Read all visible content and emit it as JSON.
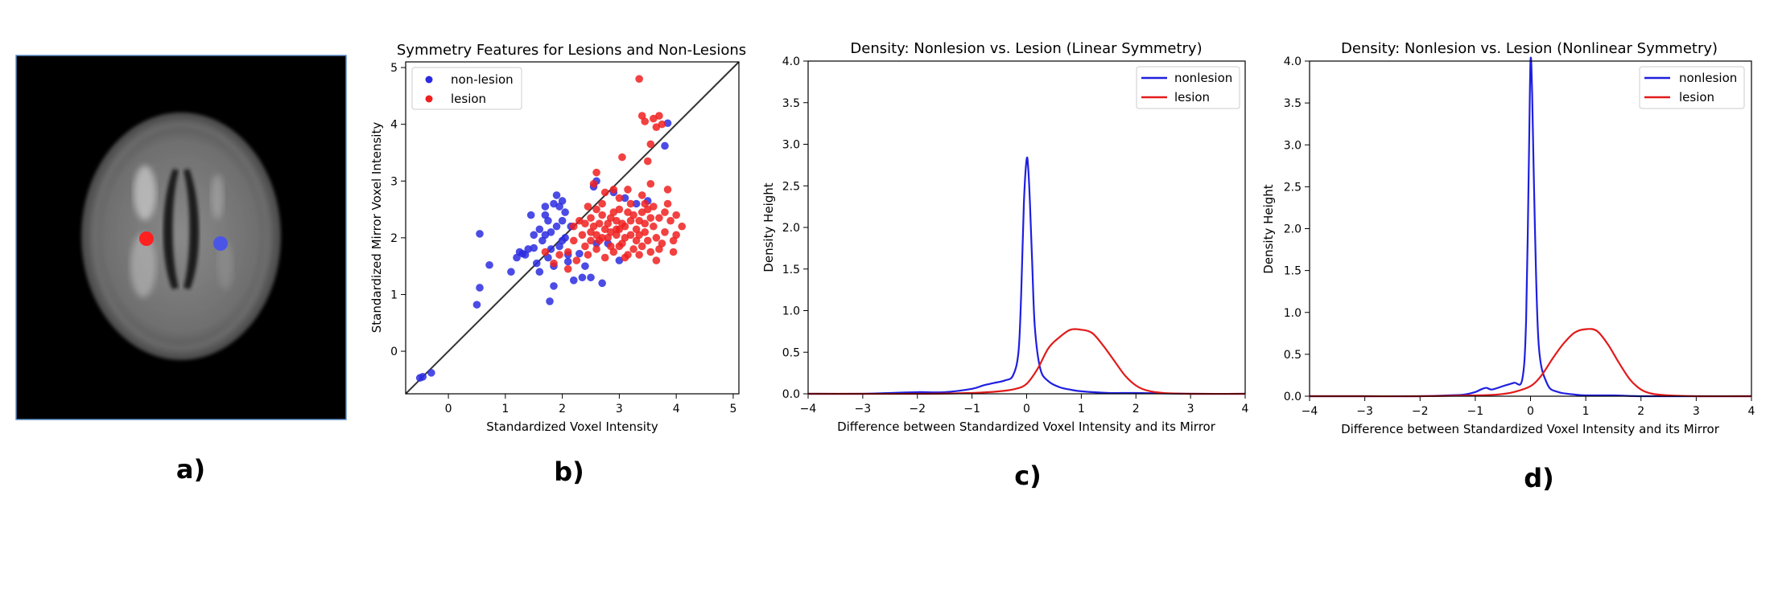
{
  "panels": {
    "a": {
      "label": "a)"
    },
    "b": {
      "label": "b)"
    },
    "c": {
      "label": "c)"
    },
    "d": {
      "label": "d)"
    }
  },
  "colors": {
    "nonlesion": "#1f1fe0",
    "lesion": "#e11b1b",
    "diag": "#333333",
    "scatter_blue": "#2b2be0",
    "scatter_red": "#f02020"
  },
  "image_a": {
    "name": "brain-mri-axial",
    "markers": [
      "lesion-dot",
      "nonlesion-dot"
    ]
  },
  "chart_data": [
    {
      "type": "scatter",
      "title": "Symmetry Features for Lesions and Non-Lesions",
      "xlabel": "Standardized Voxel Intensity",
      "ylabel": "Standardized Mirror Voxel Intensity",
      "xlim": [
        -0.75,
        5.1
      ],
      "ylim": [
        -0.75,
        5.1
      ],
      "xticks": [
        0,
        1,
        2,
        3,
        4,
        5
      ],
      "yticks": [
        0,
        1,
        2,
        3,
        4,
        5
      ],
      "diagonal": true,
      "legend": {
        "position": "top-left",
        "entries": [
          "non-lesion",
          "lesion"
        ]
      },
      "series": [
        {
          "name": "non-lesion",
          "points": [
            [
              -0.5,
              -0.47
            ],
            [
              -0.3,
              -0.38
            ],
            [
              -0.45,
              -0.45
            ],
            [
              0.5,
              0.82
            ],
            [
              0.55,
              1.12
            ],
            [
              0.55,
              2.07
            ],
            [
              0.72,
              1.52
            ],
            [
              1.1,
              1.4
            ],
            [
              1.2,
              1.65
            ],
            [
              1.25,
              1.75
            ],
            [
              1.3,
              1.72
            ],
            [
              1.4,
              1.8
            ],
            [
              1.45,
              2.4
            ],
            [
              1.5,
              1.82
            ],
            [
              1.55,
              1.55
            ],
            [
              1.6,
              1.4
            ],
            [
              1.6,
              2.15
            ],
            [
              1.7,
              2.05
            ],
            [
              1.7,
              2.4
            ],
            [
              1.75,
              1.65
            ],
            [
              1.75,
              2.3
            ],
            [
              1.78,
              0.88
            ],
            [
              1.8,
              1.8
            ],
            [
              1.8,
              2.1
            ],
            [
              1.85,
              1.15
            ],
            [
              1.85,
              1.5
            ],
            [
              1.85,
              2.6
            ],
            [
              1.9,
              2.2
            ],
            [
              1.9,
              2.75
            ],
            [
              1.95,
              1.85
            ],
            [
              1.95,
              2.55
            ],
            [
              2.0,
              2.3
            ],
            [
              2.0,
              1.95
            ],
            [
              2.05,
              2.0
            ],
            [
              2.05,
              2.45
            ],
            [
              2.1,
              1.58
            ],
            [
              2.1,
              1.7
            ],
            [
              2.15,
              2.2
            ],
            [
              2.2,
              1.25
            ],
            [
              2.3,
              1.72
            ],
            [
              2.35,
              1.3
            ],
            [
              2.4,
              1.5
            ],
            [
              2.5,
              1.3
            ],
            [
              2.55,
              2.9
            ],
            [
              2.6,
              3.0
            ],
            [
              2.6,
              1.9
            ],
            [
              2.7,
              1.2
            ],
            [
              2.8,
              1.9
            ],
            [
              2.9,
              2.8
            ],
            [
              3.0,
              1.6
            ],
            [
              3.1,
              2.7
            ],
            [
              3.3,
              2.6
            ],
            [
              3.5,
              2.65
            ],
            [
              3.8,
              3.62
            ],
            [
              3.85,
              4.02
            ],
            [
              1.65,
              1.95
            ],
            [
              1.5,
              2.05
            ],
            [
              1.35,
              1.7
            ],
            [
              2.0,
              2.65
            ],
            [
              1.7,
              2.55
            ]
          ]
        },
        {
          "name": "lesion",
          "points": [
            [
              3.35,
              4.8
            ],
            [
              3.4,
              4.15
            ],
            [
              3.45,
              4.05
            ],
            [
              3.5,
              3.35
            ],
            [
              3.55,
              3.65
            ],
            [
              3.6,
              4.1
            ],
            [
              3.65,
              3.95
            ],
            [
              3.7,
              4.15
            ],
            [
              3.75,
              4.0
            ],
            [
              3.05,
              3.42
            ],
            [
              2.6,
              3.15
            ],
            [
              2.55,
              2.95
            ],
            [
              2.75,
              2.8
            ],
            [
              2.9,
              2.85
            ],
            [
              3.55,
              2.95
            ],
            [
              3.85,
              2.85
            ],
            [
              4.1,
              2.2
            ],
            [
              4.0,
              2.05
            ],
            [
              1.85,
              1.55
            ],
            [
              1.7,
              1.75
            ],
            [
              2.1,
              1.75
            ],
            [
              2.3,
              2.3
            ],
            [
              2.45,
              2.55
            ],
            [
              2.2,
              1.95
            ],
            [
              2.4,
              1.85
            ],
            [
              2.5,
              2.1
            ],
            [
              2.6,
              1.8
            ],
            [
              2.65,
              2.25
            ],
            [
              2.7,
              2.4
            ],
            [
              2.75,
              1.65
            ],
            [
              2.8,
              2.0
            ],
            [
              2.85,
              2.35
            ],
            [
              2.9,
              1.75
            ],
            [
              2.95,
              2.15
            ],
            [
              3.0,
              2.5
            ],
            [
              3.05,
              1.9
            ],
            [
              3.1,
              2.2
            ],
            [
              3.15,
              1.7
            ],
            [
              3.2,
              2.05
            ],
            [
              3.25,
              2.4
            ],
            [
              3.3,
              1.95
            ],
            [
              3.35,
              2.3
            ],
            [
              3.4,
              1.85
            ],
            [
              3.45,
              2.1
            ],
            [
              3.5,
              2.5
            ],
            [
              3.55,
              1.75
            ],
            [
              3.6,
              2.2
            ],
            [
              3.65,
              2.0
            ],
            [
              3.7,
              2.35
            ],
            [
              3.75,
              1.9
            ],
            [
              3.8,
              2.1
            ],
            [
              3.9,
              2.3
            ],
            [
              3.95,
              1.95
            ],
            [
              2.55,
              2.2
            ],
            [
              2.65,
              1.95
            ],
            [
              2.75,
              2.15
            ],
            [
              2.85,
              1.85
            ],
            [
              2.95,
              2.05
            ],
            [
              3.05,
              2.25
            ],
            [
              3.15,
              2.45
            ],
            [
              3.25,
              1.8
            ],
            [
              3.35,
              2.05
            ],
            [
              3.45,
              2.6
            ],
            [
              3.55,
              2.35
            ],
            [
              3.65,
              1.6
            ],
            [
              2.35,
              2.05
            ],
            [
              2.45,
              1.7
            ],
            [
              2.5,
              2.35
            ],
            [
              2.6,
              2.05
            ],
            [
              2.7,
              2.6
            ],
            [
              2.8,
              2.25
            ],
            [
              2.9,
              2.45
            ],
            [
              3.0,
              1.85
            ],
            [
              3.1,
              2.0
            ],
            [
              3.2,
              2.3
            ],
            [
              3.3,
              2.15
            ],
            [
              3.4,
              2.45
            ],
            [
              3.5,
              1.95
            ],
            [
              3.6,
              2.55
            ],
            [
              3.7,
              1.8
            ],
            [
              3.8,
              2.45
            ],
            [
              3.0,
              2.15
            ],
            [
              3.1,
              1.65
            ],
            [
              3.2,
              2.6
            ],
            [
              2.95,
              2.3
            ],
            [
              2.85,
              2.1
            ],
            [
              3.35,
              1.7
            ],
            [
              3.45,
              2.25
            ],
            [
              2.7,
              2.0
            ],
            [
              2.2,
              2.2
            ],
            [
              2.25,
              1.6
            ],
            [
              3.85,
              2.6
            ],
            [
              4.0,
              2.4
            ],
            [
              3.95,
              1.75
            ],
            [
              2.4,
              2.25
            ],
            [
              2.5,
              1.95
            ],
            [
              2.6,
              2.5
            ],
            [
              3.0,
              2.7
            ],
            [
              3.15,
              2.85
            ],
            [
              3.4,
              2.75
            ],
            [
              2.1,
              1.45
            ],
            [
              1.95,
              1.7
            ]
          ]
        }
      ]
    },
    {
      "type": "line",
      "title": "Density: Nonlesion vs. Lesion (Linear Symmetry)",
      "xlabel": "Difference between Standardized Voxel Intensity and its Mirror",
      "ylabel": "Density Height",
      "xlim": [
        -4,
        4
      ],
      "ylim": [
        0,
        4.0
      ],
      "xticks": [
        -4,
        -3,
        -2,
        -1,
        0,
        1,
        2,
        3,
        4
      ],
      "yticks": [
        0.0,
        0.5,
        1.0,
        1.5,
        2.0,
        2.5,
        3.0,
        3.5,
        4.0
      ],
      "legend": {
        "position": "top-right",
        "entries": [
          "nonlesion",
          "lesion"
        ]
      },
      "series": [
        {
          "name": "nonlesion",
          "x": [
            -4,
            -3,
            -2.5,
            -2,
            -1.5,
            -1,
            -0.8,
            -0.6,
            -0.4,
            -0.25,
            -0.15,
            -0.1,
            -0.05,
            0,
            0.03,
            0.06,
            0.1,
            0.15,
            0.25,
            0.4,
            0.6,
            0.8,
            1.0,
            1.5,
            2,
            3,
            4
          ],
          "y": [
            0.0,
            0.0,
            0.01,
            0.02,
            0.02,
            0.06,
            0.1,
            0.13,
            0.16,
            0.22,
            0.5,
            1.2,
            2.3,
            2.82,
            2.7,
            2.3,
            1.6,
            0.8,
            0.3,
            0.15,
            0.08,
            0.05,
            0.03,
            0.01,
            0.01,
            0.0,
            0.0
          ]
        },
        {
          "name": "lesion",
          "x": [
            -4,
            -3,
            -2,
            -1,
            -0.5,
            -0.2,
            0,
            0.2,
            0.4,
            0.6,
            0.8,
            1.0,
            1.2,
            1.4,
            1.6,
            1.8,
            2.0,
            2.2,
            2.5,
            3,
            4
          ],
          "y": [
            0.0,
            0.0,
            0.0,
            0.01,
            0.03,
            0.06,
            0.12,
            0.3,
            0.55,
            0.68,
            0.77,
            0.77,
            0.73,
            0.58,
            0.4,
            0.22,
            0.1,
            0.04,
            0.01,
            0.0,
            0.0
          ]
        }
      ]
    },
    {
      "type": "line",
      "title": "Density: Nonlesion vs. Lesion (Nonlinear Symmetry)",
      "xlabel": "Difference between Standardized Voxel Intensity and its Mirror",
      "ylabel": "Density Height",
      "xlim": [
        -4,
        4
      ],
      "ylim": [
        0,
        4.0
      ],
      "xticks": [
        -4,
        -3,
        -2,
        -1,
        0,
        1,
        2,
        3,
        4
      ],
      "yticks": [
        0.0,
        0.5,
        1.0,
        1.5,
        2.0,
        2.5,
        3.0,
        3.5,
        4.0
      ],
      "legend": {
        "position": "top-right",
        "entries": [
          "nonlesion",
          "lesion"
        ]
      },
      "series": [
        {
          "name": "nonlesion",
          "x": [
            -4,
            -3,
            -2,
            -1.5,
            -1.2,
            -1,
            -0.9,
            -0.8,
            -0.7,
            -0.5,
            -0.3,
            -0.15,
            -0.08,
            -0.03,
            0,
            0.03,
            0.08,
            0.15,
            0.3,
            0.5,
            0.8,
            1.0,
            1.5,
            2,
            3,
            4
          ],
          "y": [
            0.0,
            0.0,
            0.0,
            0.01,
            0.02,
            0.05,
            0.08,
            0.1,
            0.08,
            0.12,
            0.16,
            0.2,
            0.9,
            2.8,
            4.0,
            3.6,
            2.0,
            0.6,
            0.15,
            0.05,
            0.02,
            0.01,
            0.01,
            0.0,
            0.0,
            0.0
          ]
        },
        {
          "name": "lesion",
          "x": [
            -4,
            -3,
            -2,
            -1,
            -0.6,
            -0.3,
            0,
            0.2,
            0.4,
            0.6,
            0.8,
            1.0,
            1.2,
            1.4,
            1.6,
            1.8,
            2.0,
            2.2,
            2.5,
            3,
            4
          ],
          "y": [
            0.0,
            0.0,
            0.0,
            0.01,
            0.02,
            0.05,
            0.12,
            0.25,
            0.45,
            0.63,
            0.76,
            0.8,
            0.78,
            0.62,
            0.4,
            0.2,
            0.08,
            0.03,
            0.01,
            0.0,
            0.0
          ]
        }
      ]
    }
  ]
}
